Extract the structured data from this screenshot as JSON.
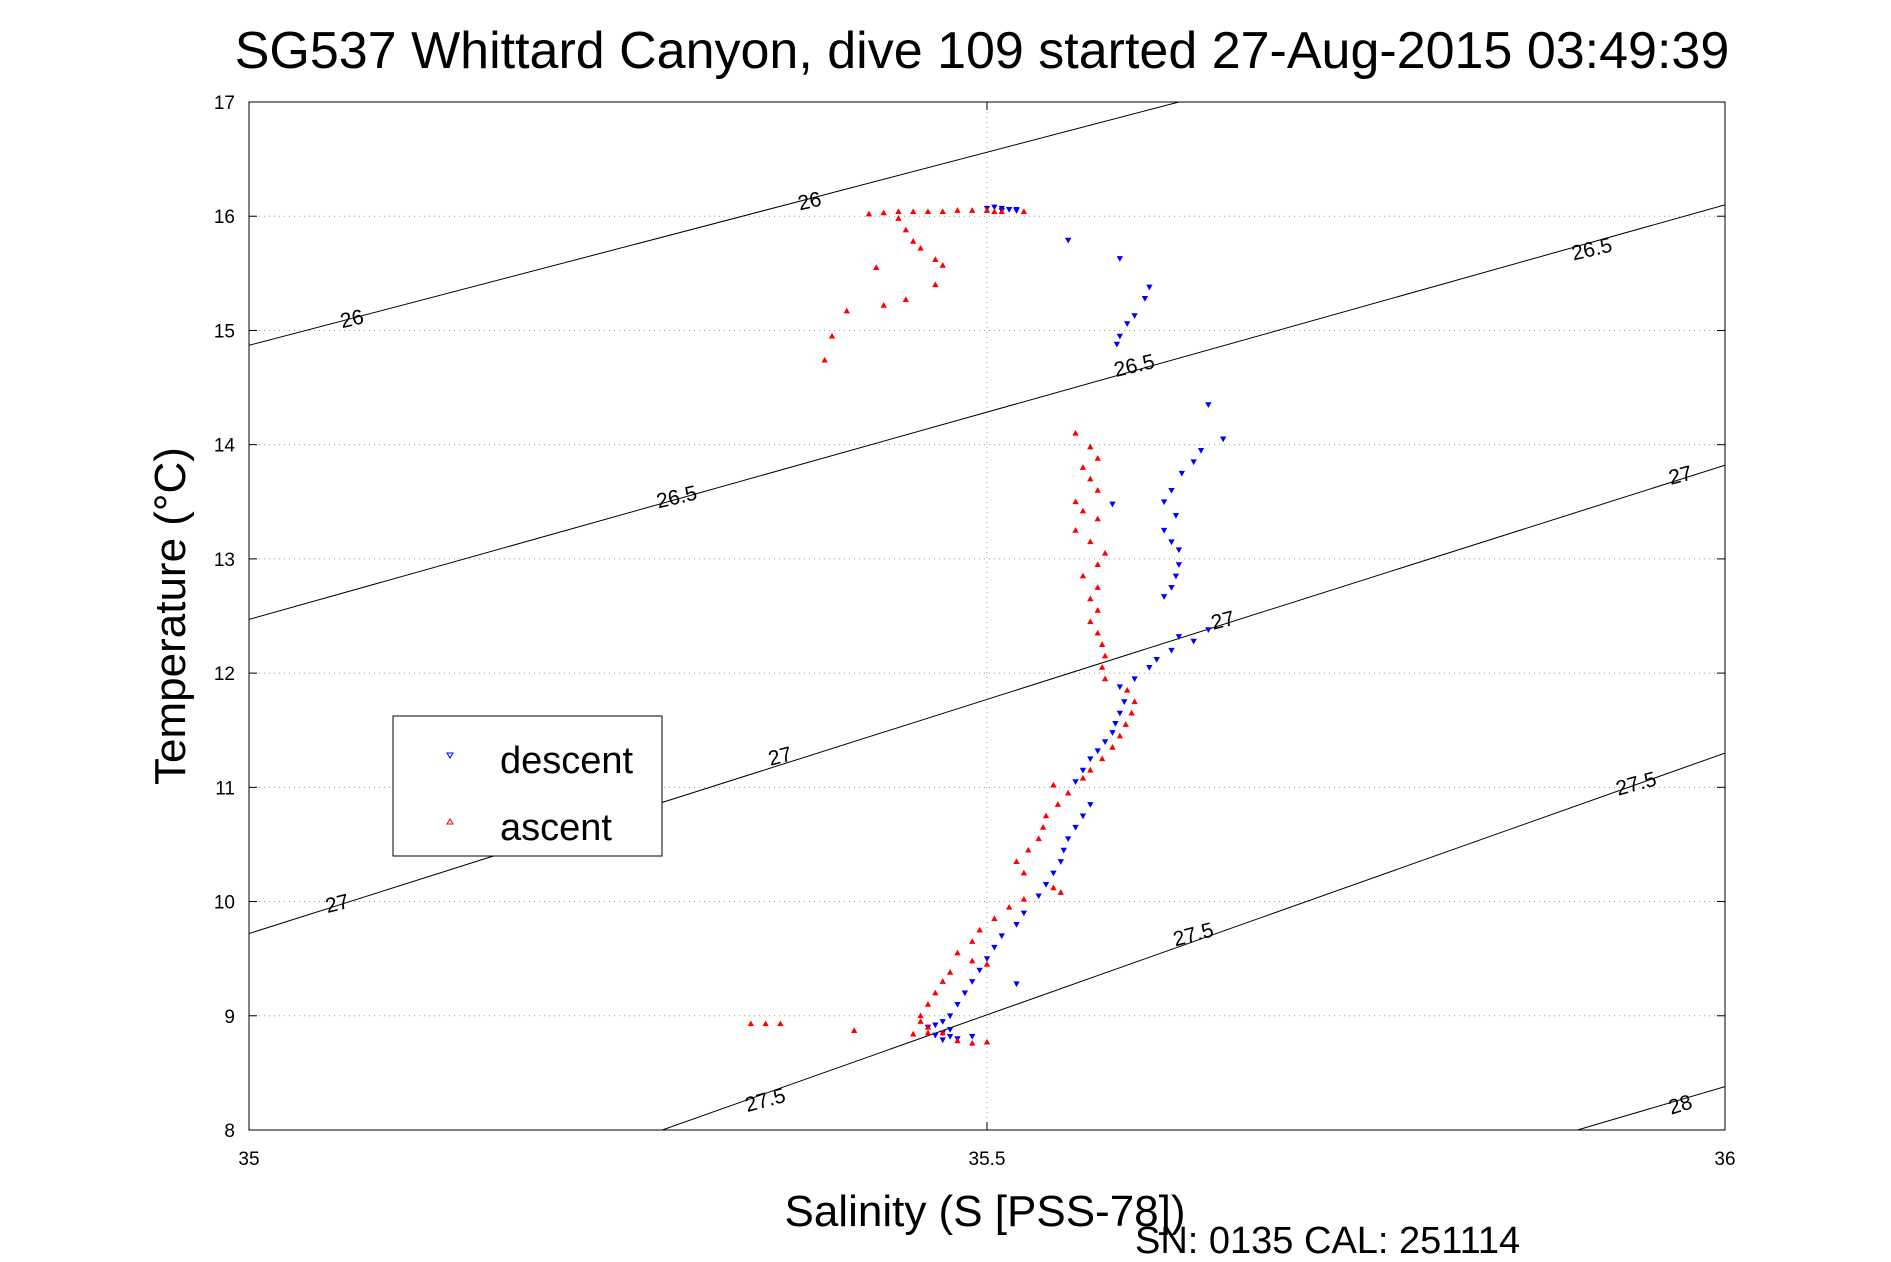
{
  "chart_data": {
    "type": "scatter",
    "title": "SG537 Whittard Canyon, dive 109 started 27-Aug-2015 03:49:39",
    "xlabel": "Salinity (S [PSS-78])",
    "ylabel": "Temperature (°C)",
    "xlim": [
      35,
      36
    ],
    "ylim": [
      8,
      17
    ],
    "x_ticks": [
      "35",
      "35.5",
      "36"
    ],
    "y_ticks": [
      "8",
      "9",
      "10",
      "11",
      "12",
      "13",
      "14",
      "15",
      "16",
      "17"
    ],
    "grid": true,
    "legend_position": "left",
    "footer": "SN: 0135  CAL: 251114",
    "contours": [
      {
        "level": "26",
        "points": [
          [
            35.0,
            14.87
          ],
          [
            35.63,
            17.0
          ]
        ]
      },
      {
        "level": "26.5",
        "points": [
          [
            35.0,
            12.47
          ],
          [
            36.0,
            16.1
          ]
        ]
      },
      {
        "level": "27",
        "points": [
          [
            35.0,
            9.72
          ],
          [
            36.0,
            13.82
          ]
        ]
      },
      {
        "level": "27.5",
        "points": [
          [
            35.28,
            8.0
          ],
          [
            36.0,
            11.3
          ]
        ]
      },
      {
        "level": "28",
        "points": [
          [
            35.9,
            8.0
          ],
          [
            36.0,
            8.38
          ]
        ]
      }
    ],
    "contour_labels": [
      {
        "text": "26",
        "x": 35.07,
        "y": 15.09,
        "angle": -13
      },
      {
        "text": "26",
        "x": 35.38,
        "y": 16.12,
        "angle": -13
      },
      {
        "text": "26.5",
        "x": 35.29,
        "y": 13.53,
        "angle": -13
      },
      {
        "text": "26.5",
        "x": 35.6,
        "y": 14.68,
        "angle": -13
      },
      {
        "text": "26.5",
        "x": 35.91,
        "y": 15.7,
        "angle": -13
      },
      {
        "text": "27",
        "x": 35.06,
        "y": 9.97,
        "angle": -14
      },
      {
        "text": "27",
        "x": 35.36,
        "y": 11.26,
        "angle": -14
      },
      {
        "text": "27",
        "x": 35.66,
        "y": 12.45,
        "angle": -14
      },
      {
        "text": "27",
        "x": 35.97,
        "y": 13.72,
        "angle": -14
      },
      {
        "text": "27.5",
        "x": 35.35,
        "y": 8.25,
        "angle": -15
      },
      {
        "text": "27.5",
        "x": 35.64,
        "y": 9.7,
        "angle": -15
      },
      {
        "text": "27.5",
        "x": 35.94,
        "y": 11.02,
        "angle": -15
      },
      {
        "text": "28",
        "x": 35.97,
        "y": 8.21,
        "angle": -17
      }
    ],
    "series": [
      {
        "name": "descent",
        "color": "#0000ff",
        "marker": "triangle-down",
        "points": [
          [
            35.5,
            16.07
          ],
          [
            35.505,
            16.08
          ],
          [
            35.51,
            16.07
          ],
          [
            35.515,
            16.06
          ],
          [
            35.52,
            16.06
          ],
          [
            35.51,
            16.05
          ],
          [
            35.52,
            16.05
          ],
          [
            35.555,
            15.79
          ],
          [
            35.59,
            15.63
          ],
          [
            35.61,
            15.38
          ],
          [
            35.607,
            15.28
          ],
          [
            35.6,
            15.13
          ],
          [
            35.595,
            15.06
          ],
          [
            35.59,
            14.95
          ],
          [
            35.588,
            14.88
          ],
          [
            35.65,
            14.35
          ],
          [
            35.66,
            14.05
          ],
          [
            35.645,
            13.95
          ],
          [
            35.64,
            13.85
          ],
          [
            35.632,
            13.75
          ],
          [
            35.625,
            13.6
          ],
          [
            35.62,
            13.5
          ],
          [
            35.585,
            13.48
          ],
          [
            35.628,
            13.38
          ],
          [
            35.62,
            13.25
          ],
          [
            35.625,
            13.15
          ],
          [
            35.63,
            13.08
          ],
          [
            35.63,
            12.95
          ],
          [
            35.628,
            12.85
          ],
          [
            35.625,
            12.75
          ],
          [
            35.62,
            12.67
          ],
          [
            35.65,
            12.38
          ],
          [
            35.64,
            12.28
          ],
          [
            35.625,
            12.2
          ],
          [
            35.615,
            12.12
          ],
          [
            35.61,
            12.05
          ],
          [
            35.6,
            11.95
          ],
          [
            35.59,
            11.88
          ],
          [
            35.63,
            12.32
          ],
          [
            35.593,
            11.75
          ],
          [
            35.59,
            11.65
          ],
          [
            35.587,
            11.56
          ],
          [
            35.585,
            11.48
          ],
          [
            35.58,
            11.4
          ],
          [
            35.575,
            11.32
          ],
          [
            35.57,
            11.25
          ],
          [
            35.565,
            11.15
          ],
          [
            35.56,
            11.05
          ],
          [
            35.57,
            10.85
          ],
          [
            35.565,
            10.75
          ],
          [
            35.56,
            10.65
          ],
          [
            35.555,
            10.55
          ],
          [
            35.552,
            10.45
          ],
          [
            35.55,
            10.35
          ],
          [
            35.545,
            10.25
          ],
          [
            35.54,
            10.15
          ],
          [
            35.535,
            10.05
          ],
          [
            35.525,
            9.9
          ],
          [
            35.52,
            9.8
          ],
          [
            35.51,
            9.7
          ],
          [
            35.505,
            9.6
          ],
          [
            35.5,
            9.5
          ],
          [
            35.495,
            9.4
          ],
          [
            35.49,
            9.3
          ],
          [
            35.52,
            9.28
          ],
          [
            35.485,
            9.2
          ],
          [
            35.48,
            9.1
          ],
          [
            35.475,
            9.0
          ],
          [
            35.47,
            8.95
          ],
          [
            35.465,
            8.92
          ],
          [
            35.46,
            8.9
          ],
          [
            35.475,
            8.88
          ],
          [
            35.47,
            8.85
          ],
          [
            35.475,
            8.82
          ],
          [
            35.48,
            8.8
          ],
          [
            35.47,
            8.79
          ],
          [
            35.465,
            8.83
          ],
          [
            35.49,
            8.82
          ]
        ]
      },
      {
        "name": "ascent",
        "color": "#ff0000",
        "marker": "triangle-up",
        "points": [
          [
            35.42,
            16.02
          ],
          [
            35.43,
            16.03
          ],
          [
            35.44,
            16.04
          ],
          [
            35.45,
            16.04
          ],
          [
            35.46,
            16.04
          ],
          [
            35.47,
            16.04
          ],
          [
            35.48,
            16.05
          ],
          [
            35.49,
            16.05
          ],
          [
            35.5,
            16.05
          ],
          [
            35.505,
            16.04
          ],
          [
            35.51,
            16.04
          ],
          [
            35.525,
            16.04
          ],
          [
            35.44,
            15.98
          ],
          [
            35.445,
            15.88
          ],
          [
            35.45,
            15.78
          ],
          [
            35.455,
            15.72
          ],
          [
            35.465,
            15.62
          ],
          [
            35.47,
            15.57
          ],
          [
            35.425,
            15.55
          ],
          [
            35.465,
            15.4
          ],
          [
            35.445,
            15.27
          ],
          [
            35.43,
            15.22
          ],
          [
            35.405,
            15.17
          ],
          [
            35.395,
            14.95
          ],
          [
            35.39,
            14.74
          ],
          [
            35.56,
            14.1
          ],
          [
            35.57,
            13.98
          ],
          [
            35.575,
            13.88
          ],
          [
            35.565,
            13.8
          ],
          [
            35.57,
            13.7
          ],
          [
            35.575,
            13.6
          ],
          [
            35.56,
            13.5
          ],
          [
            35.565,
            13.42
          ],
          [
            35.575,
            13.35
          ],
          [
            35.56,
            13.25
          ],
          [
            35.57,
            13.15
          ],
          [
            35.58,
            13.05
          ],
          [
            35.575,
            12.95
          ],
          [
            35.565,
            12.85
          ],
          [
            35.575,
            12.75
          ],
          [
            35.57,
            12.65
          ],
          [
            35.575,
            12.55
          ],
          [
            35.57,
            12.45
          ],
          [
            35.575,
            12.35
          ],
          [
            35.578,
            12.25
          ],
          [
            35.58,
            12.15
          ],
          [
            35.578,
            12.05
          ],
          [
            35.58,
            11.95
          ],
          [
            35.595,
            11.85
          ],
          [
            35.6,
            11.75
          ],
          [
            35.598,
            11.65
          ],
          [
            35.594,
            11.55
          ],
          [
            35.59,
            11.45
          ],
          [
            35.585,
            11.35
          ],
          [
            35.578,
            11.25
          ],
          [
            35.57,
            11.15
          ],
          [
            35.565,
            11.08
          ],
          [
            35.545,
            11.02
          ],
          [
            35.555,
            10.95
          ],
          [
            35.548,
            10.85
          ],
          [
            35.54,
            10.75
          ],
          [
            35.538,
            10.65
          ],
          [
            35.535,
            10.55
          ],
          [
            35.528,
            10.45
          ],
          [
            35.52,
            10.35
          ],
          [
            35.525,
            10.25
          ],
          [
            35.545,
            10.12
          ],
          [
            35.55,
            10.08
          ],
          [
            35.525,
            10.02
          ],
          [
            35.515,
            9.95
          ],
          [
            35.505,
            9.85
          ],
          [
            35.495,
            9.75
          ],
          [
            35.49,
            9.65
          ],
          [
            35.48,
            9.55
          ],
          [
            35.49,
            9.48
          ],
          [
            35.5,
            9.45
          ],
          [
            35.475,
            9.38
          ],
          [
            35.47,
            9.3
          ],
          [
            35.465,
            9.2
          ],
          [
            35.46,
            9.1
          ],
          [
            35.455,
            9.0
          ],
          [
            35.46,
            8.9
          ],
          [
            35.47,
            8.85
          ],
          [
            35.48,
            8.78
          ],
          [
            35.49,
            8.76
          ],
          [
            35.5,
            8.77
          ],
          [
            35.46,
            8.85
          ],
          [
            35.455,
            8.95
          ],
          [
            35.34,
            8.93
          ],
          [
            35.35,
            8.93
          ],
          [
            35.36,
            8.93
          ],
          [
            35.41,
            8.87
          ],
          [
            35.45,
            8.84
          ]
        ]
      }
    ]
  }
}
